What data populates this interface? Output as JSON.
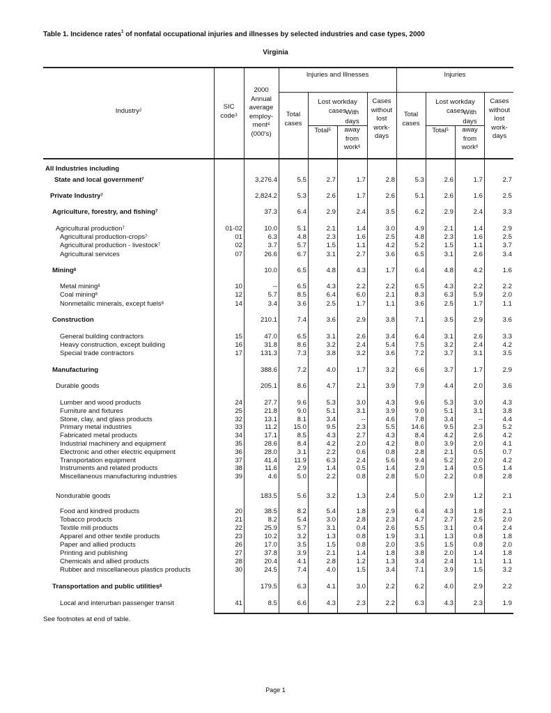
{
  "title": "Table 1.  Incidence rates",
  "title_sup": "1",
  "title_rest": " of nonfatal occupational injuries and illnesses by selected industries and case types, 2000",
  "state": "Virginia",
  "headers": {
    "industry": "Industry",
    "industry_sup": "2",
    "sic": "SIC",
    "sic2": "code",
    "sic_sup": "3",
    "emp1": "2000",
    "emp2": "Annual",
    "emp3": "average",
    "emp4": "employ-",
    "emp5": "ment",
    "emp_sup": "4",
    "emp6": "(000's)",
    "group1": "Injuries and Illnesses",
    "group2": "Injuries",
    "total_cases": "Total cases",
    "lost_workday": "Lost workday cases",
    "total": "Total",
    "total_sup": "5",
    "days_away": "With days away from work",
    "days_away_sup": "6",
    "without": "Cases without lost work-days"
  },
  "rows": [
    {
      "label": "All Industries including",
      "bold": true,
      "level": 0,
      "sup": "",
      "sic": "",
      "values": []
    },
    {
      "label": "State and local government",
      "bold": true,
      "level": 2,
      "sup": "7",
      "sic": "",
      "values": [
        "3,276.4",
        "5.5",
        "2.7",
        "1.7",
        "2.8",
        "5.3",
        "2.6",
        "1.7",
        "2.7"
      ]
    },
    {
      "label": "Private Industry",
      "bold": true,
      "level": 1,
      "sup": "7",
      "sic": "",
      "values": [
        "2,824.2",
        "5.3",
        "2.6",
        "1.7",
        "2.6",
        "5.1",
        "2.6",
        "1.6",
        "2.5"
      ]
    },
    {
      "label": "Agriculture, forestry, and fishing",
      "bold": true,
      "level": 2,
      "sup": "7",
      "sic": "",
      "values": [
        "37.3",
        "6.4",
        "2.9",
        "2.4",
        "3.5",
        "6.2",
        "2.9",
        "2.4",
        "3.3"
      ]
    },
    {
      "label": "Agricultural production",
      "bold": false,
      "level": 3,
      "sup": "7",
      "sic": "01-02",
      "values": [
        "10.0",
        "5.1",
        "2.1",
        "1.4",
        "3.0",
        "4.9",
        "2.1",
        "1.4",
        "2.9"
      ]
    },
    {
      "label": "Agricultural production-crops",
      "bold": false,
      "level": 4,
      "sup": "7",
      "sic": "01",
      "values": [
        "6.3",
        "4.8",
        "2.3",
        "1.6",
        "2.5",
        "4.8",
        "2.3",
        "1.6",
        "2.5"
      ]
    },
    {
      "label": "Agricultural production - livestock",
      "bold": false,
      "level": 4,
      "sup": "7",
      "sic": "02",
      "values": [
        "3.7",
        "5.7",
        "1.5",
        "1.1",
        "4.2",
        "5.2",
        "1.5",
        "1.1",
        "3.7"
      ]
    },
    {
      "label": "Agricultural services",
      "bold": false,
      "level": 4,
      "sup": "",
      "sic": "07",
      "values": [
        "26.6",
        "6.7",
        "3.1",
        "2.7",
        "3.6",
        "6.5",
        "3.1",
        "2.6",
        "3.4"
      ]
    },
    {
      "label": "Mining",
      "bold": true,
      "level": 2,
      "sup": "8",
      "sic": "",
      "values": [
        "10.0",
        "6.5",
        "4.8",
        "4.3",
        "1.7",
        "6.4",
        "4.8",
        "4.2",
        "1.6"
      ]
    },
    {
      "label": "Metal mining",
      "bold": false,
      "level": 4,
      "sup": "8",
      "sic": "10",
      "values": [
        "--",
        "6.5",
        "4.3",
        "2.2",
        "2.2",
        "6.5",
        "4.3",
        "2.2",
        "2.2"
      ]
    },
    {
      "label": "Coal mining",
      "bold": false,
      "level": 4,
      "sup": "8",
      "sic": "12",
      "values": [
        "5.7",
        "8.5",
        "6.4",
        "6.0",
        "2.1",
        "8.3",
        "6.3",
        "5.9",
        "2.0"
      ]
    },
    {
      "label": "Nonmetallic minerals, except fuels",
      "bold": false,
      "level": 4,
      "sup": "8",
      "sic": "14",
      "values": [
        "3.4",
        "3.6",
        "2.5",
        "1.7",
        "1.1",
        "3.6",
        "2.5",
        "1.7",
        "1.1"
      ]
    },
    {
      "label": "Construction",
      "bold": true,
      "level": 2,
      "sup": "",
      "sic": "",
      "values": [
        "210.1",
        "7.4",
        "3.6",
        "2.9",
        "3.8",
        "7.1",
        "3.5",
        "2.9",
        "3.6"
      ]
    },
    {
      "label": "General building contractors",
      "bold": false,
      "level": 4,
      "sup": "",
      "sic": "15",
      "values": [
        "47.0",
        "6.5",
        "3.1",
        "2.6",
        "3.4",
        "6.4",
        "3.1",
        "2.6",
        "3.3"
      ]
    },
    {
      "label": "Heavy construction, except building",
      "bold": false,
      "level": 4,
      "sup": "",
      "sic": "16",
      "values": [
        "31.8",
        "8.6",
        "3.2",
        "2.4",
        "5.4",
        "7.5",
        "3.2",
        "2.4",
        "4.2"
      ]
    },
    {
      "label": "Special trade contractors",
      "bold": false,
      "level": 4,
      "sup": "",
      "sic": "17",
      "values": [
        "131.3",
        "7.3",
        "3.8",
        "3.2",
        "3.6",
        "7.2",
        "3.7",
        "3.1",
        "3.5"
      ]
    },
    {
      "label": "Manufacturing",
      "bold": true,
      "level": 2,
      "sup": "",
      "sic": "",
      "values": [
        "388.6",
        "7.2",
        "4.0",
        "1.7",
        "3.2",
        "6.6",
        "3.7",
        "1.7",
        "2.9"
      ]
    },
    {
      "label": "Durable goods",
      "bold": false,
      "level": 3,
      "sup": "",
      "sic": "",
      "values": [
        "205.1",
        "8.6",
        "4.7",
        "2.1",
        "3.9",
        "7.9",
        "4.4",
        "2.0",
        "3.6"
      ]
    },
    {
      "label": "Lumber and wood products",
      "bold": false,
      "level": 4,
      "sup": "",
      "sic": "24",
      "values": [
        "27.7",
        "9.6",
        "5.3",
        "3.0",
        "4.3",
        "9.6",
        "5.3",
        "3.0",
        "4.3"
      ]
    },
    {
      "label": "Furniture and fixtures",
      "bold": false,
      "level": 4,
      "sup": "",
      "sic": "25",
      "values": [
        "21.8",
        "9.0",
        "5.1",
        "3.1",
        "3.9",
        "9.0",
        "5.1",
        "3.1",
        "3.8"
      ]
    },
    {
      "label": "Stone, clay, and glass products",
      "bold": false,
      "level": 4,
      "sup": "",
      "sic": "32",
      "values": [
        "13.1",
        "8.1",
        "3.4",
        "--",
        "4.6",
        "7.8",
        "3.4",
        "--",
        "4.4"
      ]
    },
    {
      "label": "Primary metal industries",
      "bold": false,
      "level": 4,
      "sup": "",
      "sic": "33",
      "values": [
        "11.2",
        "15.0",
        "9.5",
        "2.3",
        "5.5",
        "14.6",
        "9.5",
        "2.3",
        "5.2"
      ]
    },
    {
      "label": "Fabricated metal products",
      "bold": false,
      "level": 4,
      "sup": "",
      "sic": "34",
      "values": [
        "17.1",
        "8.5",
        "4.3",
        "2.7",
        "4.3",
        "8.4",
        "4.2",
        "2.6",
        "4.2"
      ]
    },
    {
      "label": "Industrial machinery and equipment",
      "bold": false,
      "level": 4,
      "sup": "",
      "sic": "35",
      "values": [
        "28.6",
        "8.4",
        "4.2",
        "2.0",
        "4.2",
        "8.0",
        "3.9",
        "2.0",
        "4.1"
      ]
    },
    {
      "label": "Electronic and other electric equipment",
      "bold": false,
      "level": 4,
      "sup": "",
      "sic": "36",
      "values": [
        "28.0",
        "3.1",
        "2.2",
        "0.6",
        "0.8",
        "2.8",
        "2.1",
        "0.5",
        "0.7"
      ]
    },
    {
      "label": "Transportation equipment",
      "bold": false,
      "level": 4,
      "sup": "",
      "sic": "37",
      "values": [
        "41.4",
        "11.9",
        "6.3",
        "2.4",
        "5.6",
        "9.4",
        "5.2",
        "2.0",
        "4.2"
      ]
    },
    {
      "label": "Instruments and related products",
      "bold": false,
      "level": 4,
      "sup": "",
      "sic": "38",
      "values": [
        "11.6",
        "2.9",
        "1.4",
        "0.5",
        "1.4",
        "2.9",
        "1.4",
        "0.5",
        "1.4"
      ]
    },
    {
      "label": "Miscellaneous manufacturing industries",
      "bold": false,
      "level": 4,
      "sup": "",
      "sic": "39",
      "values": [
        "4.6",
        "5.0",
        "2.2",
        "0.8",
        "2.8",
        "5.0",
        "2.2",
        "0.8",
        "2.8"
      ]
    },
    {
      "label": "Nondurable goods",
      "bold": false,
      "level": 3,
      "sup": "",
      "sic": "",
      "values": [
        "183.5",
        "5.6",
        "3.2",
        "1.3",
        "2.4",
        "5.0",
        "2.9",
        "1.2",
        "2.1"
      ]
    },
    {
      "label": "Food and kindred products",
      "bold": false,
      "level": 4,
      "sup": "",
      "sic": "20",
      "values": [
        "38.5",
        "8.2",
        "5.4",
        "1.8",
        "2.9",
        "6.4",
        "4.3",
        "1.8",
        "2.1"
      ]
    },
    {
      "label": "Tobacco products",
      "bold": false,
      "level": 4,
      "sup": "",
      "sic": "21",
      "values": [
        "8.2",
        "5.4",
        "3.0",
        "2.8",
        "2.3",
        "4.7",
        "2.7",
        "2.5",
        "2.0"
      ]
    },
    {
      "label": "Textile mill products",
      "bold": false,
      "level": 4,
      "sup": "",
      "sic": "22",
      "values": [
        "25.9",
        "5.7",
        "3.1",
        "0.4",
        "2.6",
        "5.5",
        "3.1",
        "0.4",
        "2.4"
      ]
    },
    {
      "label": "Apparel and other textile products",
      "bold": false,
      "level": 4,
      "sup": "",
      "sic": "23",
      "values": [
        "10.2",
        "3.2",
        "1.3",
        "0.8",
        "1.9",
        "3.1",
        "1.3",
        "0.8",
        "1.8"
      ]
    },
    {
      "label": "Paper and allied products",
      "bold": false,
      "level": 4,
      "sup": "",
      "sic": "26",
      "values": [
        "17.0",
        "3.5",
        "1.5",
        "0.8",
        "2.0",
        "3.5",
        "1.5",
        "0.8",
        "2.0"
      ]
    },
    {
      "label": "Printing and publishing",
      "bold": false,
      "level": 4,
      "sup": "",
      "sic": "27",
      "values": [
        "37.8",
        "3.9",
        "2.1",
        "1.4",
        "1.8",
        "3.8",
        "2.0",
        "1.4",
        "1.8"
      ]
    },
    {
      "label": "Chemicals and allied products",
      "bold": false,
      "level": 4,
      "sup": "",
      "sic": "28",
      "values": [
        "20.4",
        "4.1",
        "2.8",
        "1.2",
        "1.3",
        "3.4",
        "2.4",
        "1.1",
        "1.1"
      ]
    },
    {
      "label": "Rubber and miscellaneous plastics products",
      "bold": false,
      "level": 4,
      "sup": "",
      "sic": "30",
      "values": [
        "24.5",
        "7.4",
        "4.0",
        "1.5",
        "3.4",
        "7.1",
        "3.9",
        "1.5",
        "3.2"
      ]
    },
    {
      "label": "Transportation and public utilities",
      "bold": true,
      "level": 2,
      "sup": "8",
      "sic": "",
      "values": [
        "179.5",
        "6.3",
        "4.1",
        "3.0",
        "2.2",
        "6.2",
        "4.0",
        "2.9",
        "2.2"
      ]
    },
    {
      "label": "Local and interurban passenger transit",
      "bold": false,
      "level": 4,
      "sup": "",
      "sic": "41",
      "values": [
        "8.5",
        "6.6",
        "4.3",
        "2.3",
        "2.2",
        "6.3",
        "4.3",
        "2.3",
        "1.9"
      ]
    }
  ],
  "footnote": "See footnotes at end of table.",
  "page_label": "Page 1"
}
